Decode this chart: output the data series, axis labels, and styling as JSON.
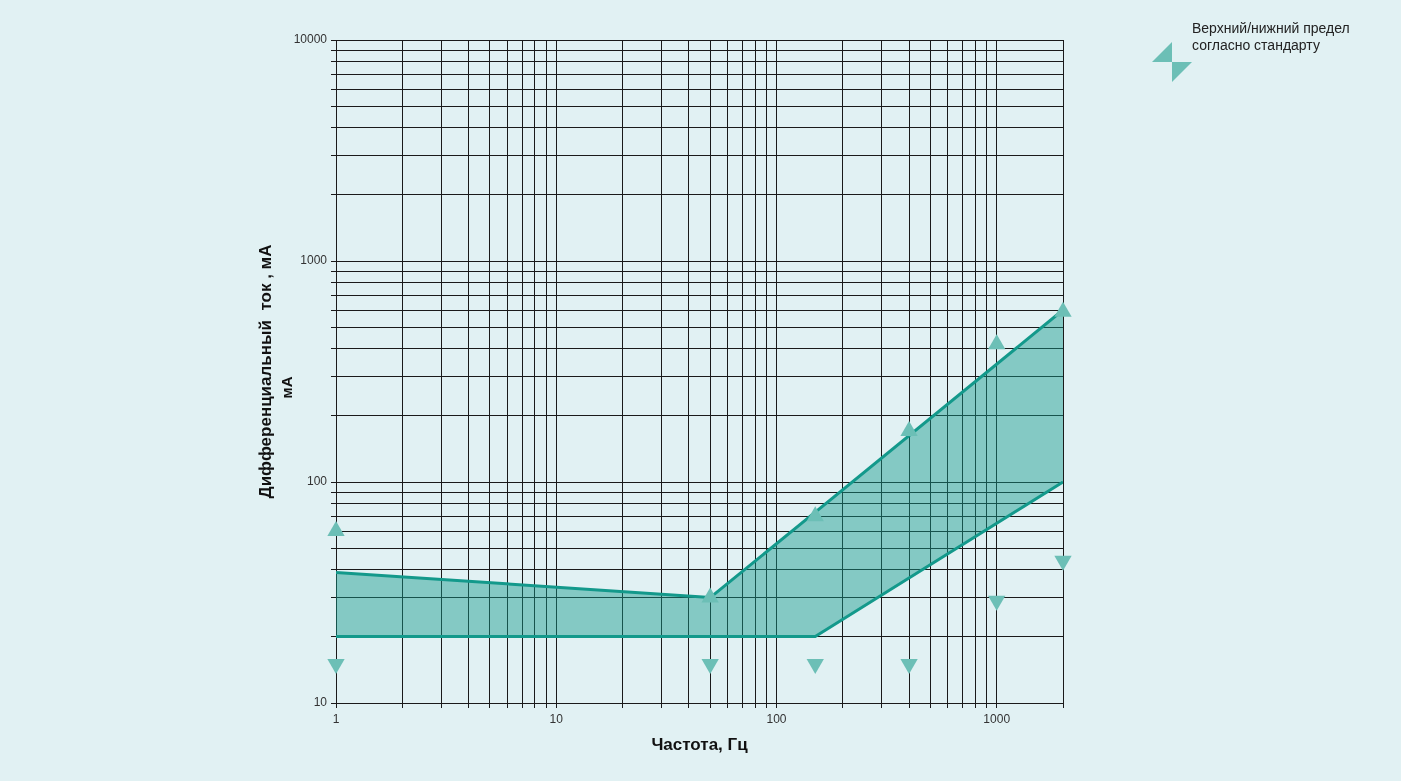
{
  "chart_data": {
    "type": "line",
    "xlabel": "Частота, Гц",
    "ylabel": "Дифференциальный  ток , мА",
    "annotations": [
      "мА"
    ],
    "log": "xy",
    "grid": true,
    "legend": "top right",
    "xlim": [
      1,
      2000
    ],
    "ylim": [
      10,
      10000
    ],
    "xticks": [
      1,
      {
        "value": 2,
        "label": null
      },
      {
        "value": 3,
        "label": null
      },
      {
        "value": 4,
        "label": null
      },
      {
        "value": 5,
        "label": null
      },
      {
        "value": 6,
        "label": null
      },
      {
        "value": 7,
        "label": null
      },
      {
        "value": 8,
        "label": null
      },
      {
        "value": 9,
        "label": null
      },
      10,
      {
        "value": 20,
        "label": null
      },
      {
        "value": 30,
        "label": null
      },
      {
        "value": 40,
        "label": null
      },
      {
        "value": 50,
        "label": null
      },
      {
        "value": 60,
        "label": null
      },
      {
        "value": 70,
        "label": null
      },
      {
        "value": 80,
        "label": null
      },
      {
        "value": 90,
        "label": null
      },
      100,
      {
        "value": 200,
        "label": null
      },
      {
        "value": 300,
        "label": null
      },
      {
        "value": 400,
        "label": null
      },
      {
        "value": 500,
        "label": null
      },
      {
        "value": 600,
        "label": null
      },
      {
        "value": 700,
        "label": null
      },
      {
        "value": 800,
        "label": null
      },
      {
        "value": 900,
        "label": null
      },
      1000,
      {
        "value": 2000,
        "label": null
      }
    ],
    "yticks": [
      10,
      {
        "value": 20,
        "label": null
      },
      {
        "value": 30,
        "label": null
      },
      {
        "value": 40,
        "label": null
      },
      {
        "value": 50,
        "label": null
      },
      {
        "value": 60,
        "label": null
      },
      {
        "value": 70,
        "label": null
      },
      {
        "value": 80,
        "label": null
      },
      {
        "value": 90,
        "label": null
      },
      100,
      {
        "value": 200,
        "label": null
      },
      {
        "value": 300,
        "label": null
      },
      {
        "value": 400,
        "label": null
      },
      {
        "value": 500,
        "label": null
      },
      {
        "value": 600,
        "label": null
      },
      {
        "value": 700,
        "label": null
      },
      {
        "value": 800,
        "label": null
      },
      {
        "value": 900,
        "label": null
      },
      1000,
      {
        "value": 2000,
        "label": null
      },
      {
        "value": 3000,
        "label": null
      },
      {
        "value": 4000,
        "label": null
      },
      {
        "value": 5000,
        "label": null
      },
      {
        "value": 6000,
        "label": null
      },
      {
        "value": 7000,
        "label": null
      },
      {
        "value": 8000,
        "label": null
      },
      {
        "value": 9000,
        "label": null
      },
      10000
    ],
    "series": [
      {
        "type": "line",
        "color": "#13998b",
        "x": [
          1,
          50,
          150,
          2000
        ],
        "values": [
          39,
          30,
          73,
          600
        ],
        "lower": [
          20,
          20,
          20,
          100
        ],
        "upper": [
          39,
          30,
          73,
          600
        ]
      },
      {
        "type": "line",
        "color": "#13998b",
        "x": [
          1,
          150,
          2000
        ],
        "values": [
          20,
          20,
          100
        ]
      },
      {
        "type": "scatter",
        "name": "Верхний/нижний предел согласно стандарту",
        "color": "#6cbfb6",
        "marker": "triangle",
        "x": [
          1,
          50,
          150,
          400,
          1000,
          2000
        ],
        "values": [
          60,
          30,
          70,
          170,
          420,
          590
        ]
      },
      {
        "type": "scatter",
        "color": "#6cbfb6",
        "marker": "triangle",
        "x": [
          1,
          50,
          150,
          400,
          1000,
          2000
        ],
        "values": [
          15,
          15,
          15,
          15,
          29,
          44
        ]
      }
    ]
  }
}
